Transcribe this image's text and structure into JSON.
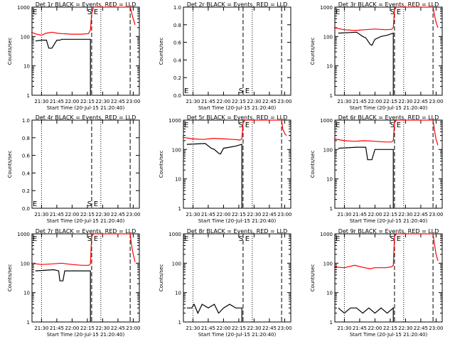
{
  "xlabel": "Start Time (20-Jul-15 21:20:40)",
  "ylabel": "Counts/sec",
  "xticks": [
    "21:30",
    "21:45",
    "22:00",
    "22:15",
    "22:30",
    "22:45",
    "23:00"
  ],
  "colors": {
    "events": "#000000",
    "lld": "#ff0000"
  },
  "markers": {
    "start": "S",
    "end": "E",
    "edge": "E"
  },
  "chart_data": [
    {
      "type": "line",
      "title": "Det 1r BLACK = Events, RED = LLD",
      "scale": "log",
      "ylim": [
        1,
        1000
      ],
      "yticks": [
        "1",
        "10",
        "100",
        "1000"
      ],
      "series": [
        {
          "name": "Events",
          "x": [
            21.4,
            21.5,
            21.58,
            21.62,
            21.67,
            21.75,
            21.8,
            21.83,
            22.2,
            22.3,
            22.3
          ],
          "y": [
            70,
            75,
            75,
            40,
            40,
            75,
            75,
            80,
            80,
            80,
            1
          ]
        },
        {
          "name": "LLD",
          "x": [
            21.33,
            21.42,
            21.5,
            21.58,
            21.67,
            21.75,
            21.83,
            22.0,
            22.15,
            22.27,
            22.3,
            22.32,
            22.35,
            22.42,
            22.48,
            22.52,
            22.92,
            22.95,
            22.97,
            23.0,
            23.03
          ],
          "y": [
            140,
            120,
            110,
            130,
            140,
            130,
            125,
            120,
            120,
            125,
            170,
            600,
            1000,
            1000,
            1000,
            1000,
            1000,
            1000,
            700,
            400,
            250
          ]
        }
      ]
    },
    {
      "type": "line",
      "title": "Det 2r BLACK = Events, RED = LLD",
      "scale": "linear",
      "ylim": [
        0,
        1
      ],
      "yticks": [
        "1.0",
        "0.8",
        "0.6",
        "0.4",
        "0.2",
        "0.0"
      ],
      "series": []
    },
    {
      "type": "line",
      "title": "Det 3r BLACK = Events, RED = LLD",
      "scale": "log",
      "ylim": [
        1,
        1000
      ],
      "yticks": [
        "1",
        "10",
        "100",
        "1000"
      ],
      "series": [
        {
          "name": "Events",
          "x": [
            21.4,
            21.7,
            21.8,
            21.85,
            21.92,
            21.95,
            22.0,
            22.1,
            22.2,
            22.25,
            22.3,
            22.3
          ],
          "y": [
            130,
            140,
            100,
            90,
            55,
            50,
            80,
            100,
            110,
            120,
            130,
            1
          ]
        },
        {
          "name": "LLD",
          "x": [
            21.33,
            21.5,
            21.67,
            21.83,
            22.0,
            22.17,
            22.27,
            22.3,
            22.32,
            22.35,
            22.42,
            22.92,
            22.95,
            22.97,
            23.0,
            23.03
          ],
          "y": [
            200,
            170,
            160,
            170,
            180,
            170,
            175,
            200,
            800,
            1000,
            1000,
            1000,
            1000,
            600,
            300,
            200
          ]
        }
      ]
    },
    {
      "type": "line",
      "title": "Det 4r BLACK = Events, RED = LLD",
      "scale": "linear",
      "ylim": [
        0,
        1
      ],
      "yticks": [
        "1.0",
        "0.8",
        "0.6",
        "0.4",
        "0.2",
        "0.0"
      ],
      "series": []
    },
    {
      "type": "line",
      "title": "Det 5r BLACK = Events, RED = LLD",
      "scale": "log",
      "ylim": [
        1,
        1000
      ],
      "yticks": [
        "1",
        "10",
        "100",
        "1000"
      ],
      "series": [
        {
          "name": "Events",
          "x": [
            21.4,
            21.7,
            21.8,
            21.85,
            21.92,
            21.95,
            22.0,
            22.1,
            22.2,
            22.25,
            22.3,
            22.3
          ],
          "y": [
            150,
            160,
            110,
            100,
            75,
            70,
            110,
            120,
            130,
            140,
            150,
            1
          ]
        },
        {
          "name": "LLD",
          "x": [
            21.33,
            21.5,
            21.67,
            21.83,
            22.0,
            22.17,
            22.27,
            22.3,
            22.32,
            22.35,
            22.42,
            22.92,
            22.95,
            22.97,
            23.0,
            23.03
          ],
          "y": [
            260,
            230,
            220,
            240,
            230,
            220,
            210,
            230,
            800,
            1000,
            1000,
            1000,
            1000,
            500,
            350,
            300
          ]
        }
      ]
    },
    {
      "type": "line",
      "title": "Det 6r BLACK = Events, RED = LLD",
      "scale": "log",
      "ylim": [
        1,
        1000
      ],
      "yticks": [
        "1",
        "10",
        "100",
        "1000"
      ],
      "series": [
        {
          "name": "Events",
          "x": [
            21.4,
            21.7,
            21.85,
            21.88,
            21.95,
            22.0,
            22.3,
            22.3
          ],
          "y": [
            110,
            120,
            120,
            45,
            45,
            100,
            100,
            1
          ]
        },
        {
          "name": "LLD",
          "x": [
            21.33,
            21.5,
            21.67,
            21.83,
            22.0,
            22.17,
            22.27,
            22.3,
            22.32,
            22.35,
            22.42,
            22.92,
            22.95,
            22.97,
            23.0,
            23.03
          ],
          "y": [
            230,
            200,
            190,
            200,
            190,
            180,
            180,
            200,
            800,
            1000,
            1000,
            1000,
            1000,
            500,
            220,
            140
          ]
        }
      ]
    },
    {
      "type": "line",
      "title": "Det 7r BLACK = Events, RED = LLD",
      "scale": "log",
      "ylim": [
        1,
        1000
      ],
      "yticks": [
        "1",
        "10",
        "100",
        "1000"
      ],
      "series": [
        {
          "name": "Events",
          "x": [
            21.4,
            21.7,
            21.78,
            21.8,
            21.85,
            21.88,
            22.3,
            22.3
          ],
          "y": [
            55,
            60,
            55,
            25,
            25,
            55,
            55,
            1
          ]
        },
        {
          "name": "LLD",
          "x": [
            21.33,
            21.5,
            21.67,
            21.83,
            22.0,
            22.17,
            22.27,
            22.3,
            22.32,
            22.35,
            22.42,
            22.92,
            22.95,
            22.97,
            23.0,
            23.03
          ],
          "y": [
            100,
            90,
            95,
            100,
            90,
            85,
            85,
            95,
            800,
            1000,
            1000,
            1000,
            1000,
            450,
            200,
            110
          ]
        }
      ]
    },
    {
      "type": "line",
      "title": "Det 8r BLACK = Events, RED = LLD",
      "scale": "log",
      "ylim": [
        1,
        1000
      ],
      "yticks": [
        "1",
        "10",
        "100",
        "1000"
      ],
      "series": [
        {
          "name": "Events",
          "x": [
            21.4,
            21.48,
            21.52,
            21.58,
            21.65,
            21.75,
            21.85,
            21.92,
            22.0,
            22.1,
            22.2,
            22.3,
            22.3
          ],
          "y": [
            3,
            3,
            4,
            2,
            4,
            3,
            4,
            2,
            3,
            4,
            3,
            3,
            1
          ]
        }
      ]
    },
    {
      "type": "line",
      "title": "Det 9r BLACK = Events, RED = LLD",
      "scale": "log",
      "ylim": [
        1,
        1000
      ],
      "yticks": [
        "1",
        "10",
        "100",
        "1000"
      ],
      "series": [
        {
          "name": "Events",
          "x": [
            21.4,
            21.5,
            21.6,
            21.7,
            21.8,
            21.9,
            22.0,
            22.1,
            22.2,
            22.3,
            22.3
          ],
          "y": [
            3,
            2,
            3,
            3,
            2,
            3,
            2,
            3,
            2,
            3,
            1
          ]
        },
        {
          "name": "LLD",
          "x": [
            21.33,
            21.5,
            21.67,
            21.83,
            21.92,
            22.0,
            22.17,
            22.27,
            22.3,
            22.32,
            22.35,
            22.42,
            22.92,
            22.95,
            22.97,
            23.0,
            23.03
          ],
          "y": [
            75,
            70,
            85,
            70,
            65,
            70,
            70,
            75,
            85,
            800,
            1000,
            1000,
            1000,
            1000,
            500,
            200,
            120
          ]
        }
      ]
    }
  ]
}
